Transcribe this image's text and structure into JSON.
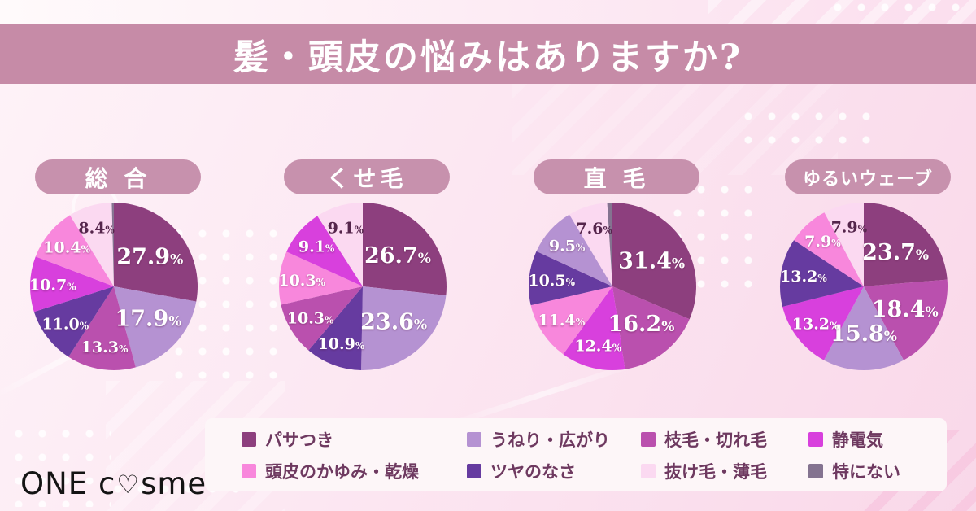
{
  "header": {
    "title": "髪・頭皮の悩みはありますか?"
  },
  "logo": {
    "text_before": "ONE c",
    "heart_icon": "♡",
    "text_after": "sme"
  },
  "palette": {
    "banner": "#c68ba7",
    "pill": "#c791ad",
    "legend_box": "#fdf6f8",
    "legend_text": "#6e3960",
    "label_light": "#ffffff",
    "label_dark": "#55254c"
  },
  "legend": {
    "items": [
      {
        "label": "パサつき",
        "color": "#8d3f7e"
      },
      {
        "label": "うねり・広がり",
        "color": "#b592d2"
      },
      {
        "label": "枝毛・切れ毛",
        "color": "#ba50ae"
      },
      {
        "label": "静電気",
        "color": "#d840dd"
      },
      {
        "label": "頭皮のかゆみ・乾燥",
        "color": "#f887dc"
      },
      {
        "label": "ツヤのなさ",
        "color": "#663ba0"
      },
      {
        "label": "抜け毛・薄毛",
        "color": "#fbd9f1"
      },
      {
        "label": "特にない",
        "color": "#847390"
      }
    ]
  },
  "chart_data": [
    {
      "type": "pie",
      "title": "総 合",
      "slices": [
        {
          "category": "パサつき",
          "value": 27.9,
          "color": "#8d3f7e",
          "label_style": "light"
        },
        {
          "category": "うねり・広がり",
          "value": 17.9,
          "color": "#b592d2",
          "label_style": "light"
        },
        {
          "category": "枝毛・切れ毛",
          "value": 13.3,
          "color": "#ba50ae",
          "label_style": "light"
        },
        {
          "category": "ツヤのなさ",
          "value": 11.0,
          "color": "#663ba0",
          "label_style": "light"
        },
        {
          "category": "静電気",
          "value": 10.7,
          "color": "#d840dd",
          "label_style": "light"
        },
        {
          "category": "頭皮のかゆみ・乾燥",
          "value": 10.4,
          "color": "#f887dc",
          "label_style": "light"
        },
        {
          "category": "抜け毛・薄毛",
          "value": 8.4,
          "color": "#fbd9f1",
          "label_style": "dark"
        },
        {
          "category": "特にない",
          "value": 0.4,
          "color": "#847390",
          "label_style": "none"
        }
      ]
    },
    {
      "type": "pie",
      "title": "くせ毛",
      "slices": [
        {
          "category": "パサつき",
          "value": 26.7,
          "color": "#8d3f7e",
          "label_style": "light"
        },
        {
          "category": "うねり・広がり",
          "value": 23.6,
          "color": "#b592d2",
          "label_style": "light"
        },
        {
          "category": "ツヤのなさ",
          "value": 10.9,
          "color": "#663ba0",
          "label_style": "light"
        },
        {
          "category": "枝毛・切れ毛",
          "value": 10.3,
          "color": "#ba50ae",
          "label_style": "light"
        },
        {
          "category": "頭皮のかゆみ・乾燥",
          "value": 10.3,
          "color": "#f887dc",
          "label_style": "light"
        },
        {
          "category": "静電気",
          "value": 9.1,
          "color": "#d840dd",
          "label_style": "light"
        },
        {
          "category": "抜け毛・薄毛",
          "value": 9.1,
          "color": "#fbd9f1",
          "label_style": "dark"
        }
      ]
    },
    {
      "type": "pie",
      "title": "直 毛",
      "slices": [
        {
          "category": "パサつき",
          "value": 31.4,
          "color": "#8d3f7e",
          "label_style": "light"
        },
        {
          "category": "枝毛・切れ毛",
          "value": 16.2,
          "color": "#ba50ae",
          "label_style": "light"
        },
        {
          "category": "静電気",
          "value": 12.4,
          "color": "#d840dd",
          "label_style": "light"
        },
        {
          "category": "頭皮のかゆみ・乾燥",
          "value": 11.4,
          "color": "#f887dc",
          "label_style": "light"
        },
        {
          "category": "ツヤのなさ",
          "value": 10.5,
          "color": "#663ba0",
          "label_style": "light"
        },
        {
          "category": "うねり・広がり",
          "value": 9.5,
          "color": "#b592d2",
          "label_style": "light"
        },
        {
          "category": "抜け毛・薄毛",
          "value": 7.6,
          "color": "#fbd9f1",
          "label_style": "dark"
        },
        {
          "category": "特にない",
          "value": 1.0,
          "color": "#847390",
          "label_style": "none"
        }
      ]
    },
    {
      "type": "pie",
      "title": "ゆるいウェーブ",
      "slices": [
        {
          "category": "パサつき",
          "value": 23.7,
          "color": "#8d3f7e",
          "label_style": "light"
        },
        {
          "category": "枝毛・切れ毛",
          "value": 18.4,
          "color": "#ba50ae",
          "label_style": "light"
        },
        {
          "category": "うねり・広がり",
          "value": 15.8,
          "color": "#b592d2",
          "label_style": "light"
        },
        {
          "category": "静電気",
          "value": 13.2,
          "color": "#d840dd",
          "label_style": "light"
        },
        {
          "category": "ツヤのなさ",
          "value": 13.2,
          "color": "#663ba0",
          "label_style": "light"
        },
        {
          "category": "頭皮のかゆみ・乾燥",
          "value": 7.9,
          "color": "#f887dc",
          "label_style": "light"
        },
        {
          "category": "抜け毛・薄毛",
          "value": 7.9,
          "color": "#fbd9f1",
          "label_style": "dark"
        }
      ]
    }
  ]
}
